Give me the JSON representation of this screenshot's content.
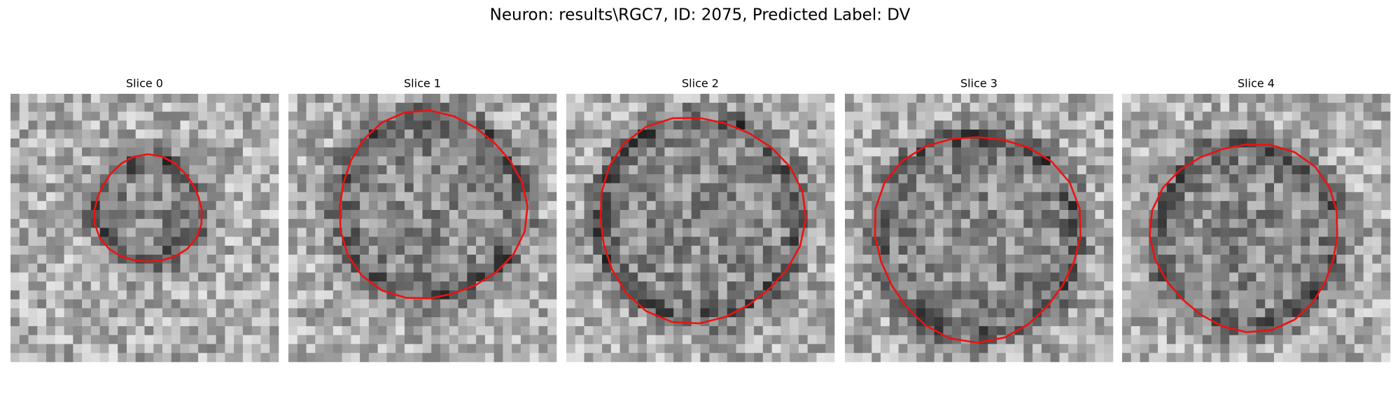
{
  "title": "Neuron: results\\RGC7, ID: 2075, Predicted Label: DV",
  "panels": [
    {
      "title": "Slice 0"
    },
    {
      "title": "Slice 1"
    },
    {
      "title": "Slice 2"
    },
    {
      "title": "Slice 3"
    },
    {
      "title": "Slice 4"
    }
  ]
}
